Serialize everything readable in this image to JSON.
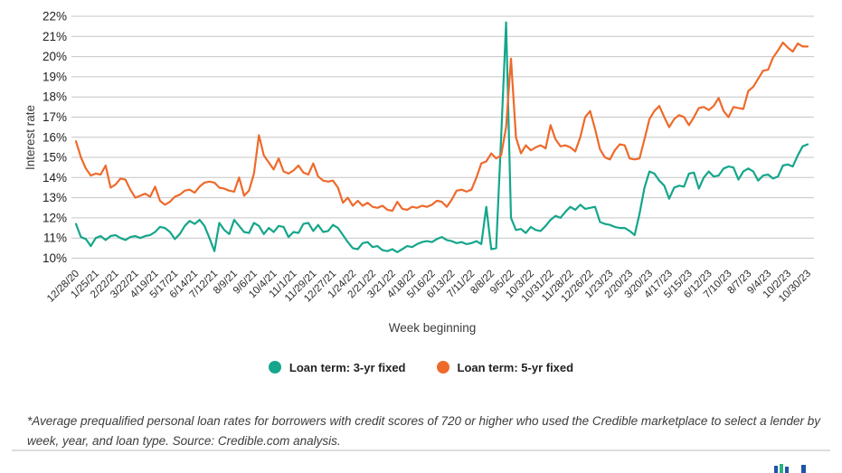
{
  "colors": {
    "teal": "#15A68B",
    "orange": "#EE6A2B",
    "gridline": "#c6c6c6",
    "logo_blue": "#1d55a8",
    "logo_green": "#2fae7e"
  },
  "footnote": {
    "text": "*Average prequalified personal loan rates for borrowers with credit scores of 720 or higher who used the Credible marketplace to select a lender by week, year, and loan type. Source: Credible.com analysis."
  },
  "chart_data": {
    "type": "line",
    "title": "",
    "xlabel": "Week beginning",
    "ylabel": "Interest rate",
    "ylim": [
      10,
      22
    ],
    "y_tick_suffix": "%",
    "grid": true,
    "legend_position": "bottom",
    "points_per_label": 4,
    "categories": [
      "12/28/20",
      "1/25/21",
      "2/22/21",
      "3/22/21",
      "4/19/21",
      "5/17/21",
      "6/14/21",
      "7/12/21",
      "8/9/21",
      "9/6/21",
      "10/4/21",
      "11/1/21",
      "11/29/21",
      "12/27/21",
      "1/24/22",
      "2/21/22",
      "3/21/22",
      "4/18/22",
      "5/16/22",
      "6/13/22",
      "7/11/22",
      "8/8/22",
      "9/5/22",
      "10/3/22",
      "10/31/22",
      "11/28/22",
      "12/26/22",
      "1/23/23",
      "2/20/23",
      "3/20/23",
      "4/17/23",
      "5/15/23",
      "6/12/23",
      "7/10/23",
      "8/7/23",
      "9/4/23",
      "10/2/23",
      "10/30/23"
    ],
    "series": [
      {
        "id": "3yr",
        "name": "Loan term: 3-yr fixed",
        "color_key": "teal",
        "values": [
          11.7,
          11.05,
          10.95,
          10.6,
          11.0,
          11.1,
          10.9,
          11.1,
          11.15,
          11.0,
          10.9,
          11.05,
          11.1,
          11.0,
          11.1,
          11.15,
          11.3,
          11.55,
          11.5,
          11.3,
          10.95,
          11.2,
          11.6,
          11.85,
          11.7,
          11.9,
          11.6,
          11.0,
          10.35,
          11.75,
          11.4,
          11.2,
          11.9,
          11.6,
          11.3,
          11.25,
          11.75,
          11.6,
          11.2,
          11.5,
          11.3,
          11.6,
          11.55,
          11.05,
          11.3,
          11.25,
          11.7,
          11.75,
          11.35,
          11.65,
          11.3,
          11.35,
          11.65,
          11.5,
          11.15,
          10.8,
          10.5,
          10.45,
          10.75,
          10.8,
          10.55,
          10.6,
          10.4,
          10.35,
          10.45,
          10.3,
          10.45,
          10.6,
          10.55,
          10.7,
          10.8,
          10.85,
          10.8,
          10.95,
          11.05,
          10.9,
          10.85,
          10.75,
          10.8,
          10.7,
          10.75,
          10.85,
          10.7,
          12.55,
          10.45,
          10.5,
          16.0,
          21.7,
          12.0,
          11.4,
          11.45,
          11.25,
          11.55,
          11.4,
          11.35,
          11.6,
          11.9,
          12.1,
          12.0,
          12.3,
          12.55,
          12.4,
          12.65,
          12.45,
          12.5,
          12.55,
          11.8,
          11.7,
          11.65,
          11.55,
          11.5,
          11.5,
          11.35,
          11.15,
          12.2,
          13.5,
          14.3,
          14.2,
          13.85,
          13.6,
          12.95,
          13.5,
          13.6,
          13.55,
          14.2,
          14.25,
          13.45,
          14.0,
          14.3,
          14.05,
          14.1,
          14.45,
          14.55,
          14.5,
          13.9,
          14.3,
          14.45,
          14.3,
          13.85,
          14.1,
          14.15,
          13.95,
          14.05,
          14.6,
          14.65,
          14.55,
          15.1,
          15.55,
          15.65
        ]
      },
      {
        "id": "5yr",
        "name": "Loan term: 5-yr fixed",
        "color_key": "orange",
        "values": [
          15.8,
          15.0,
          14.45,
          14.1,
          14.2,
          14.15,
          14.6,
          13.5,
          13.65,
          13.95,
          13.9,
          13.4,
          13.0,
          13.1,
          13.2,
          13.05,
          13.55,
          12.85,
          12.65,
          12.8,
          13.05,
          13.15,
          13.35,
          13.4,
          13.25,
          13.55,
          13.75,
          13.8,
          13.75,
          13.5,
          13.45,
          13.35,
          13.3,
          14.0,
          13.1,
          13.35,
          14.2,
          16.1,
          15.1,
          14.75,
          14.4,
          14.95,
          14.3,
          14.2,
          14.35,
          14.6,
          14.25,
          14.15,
          14.7,
          14.05,
          13.85,
          13.8,
          13.85,
          13.5,
          12.75,
          13.0,
          12.6,
          12.85,
          12.6,
          12.75,
          12.55,
          12.5,
          12.6,
          12.4,
          12.35,
          12.8,
          12.45,
          12.4,
          12.55,
          12.5,
          12.6,
          12.55,
          12.65,
          12.85,
          12.8,
          12.55,
          12.9,
          13.35,
          13.4,
          13.3,
          13.4,
          14.0,
          14.7,
          14.8,
          15.2,
          14.95,
          15.1,
          16.5,
          19.9,
          16.0,
          15.2,
          15.6,
          15.35,
          15.5,
          15.6,
          15.45,
          16.6,
          15.9,
          15.55,
          15.6,
          15.5,
          15.3,
          16.0,
          17.0,
          17.3,
          16.4,
          15.4,
          15.0,
          14.9,
          15.35,
          15.65,
          15.6,
          14.95,
          14.9,
          14.95,
          15.9,
          16.9,
          17.3,
          17.55,
          17.0,
          16.5,
          16.9,
          17.1,
          17.0,
          16.6,
          17.0,
          17.45,
          17.5,
          17.35,
          17.55,
          17.95,
          17.3,
          17.0,
          17.5,
          17.45,
          17.4,
          18.3,
          18.5,
          18.9,
          19.3,
          19.35,
          19.95,
          20.3,
          20.7,
          20.45,
          20.25,
          20.65,
          20.5,
          20.5
        ]
      }
    ]
  }
}
